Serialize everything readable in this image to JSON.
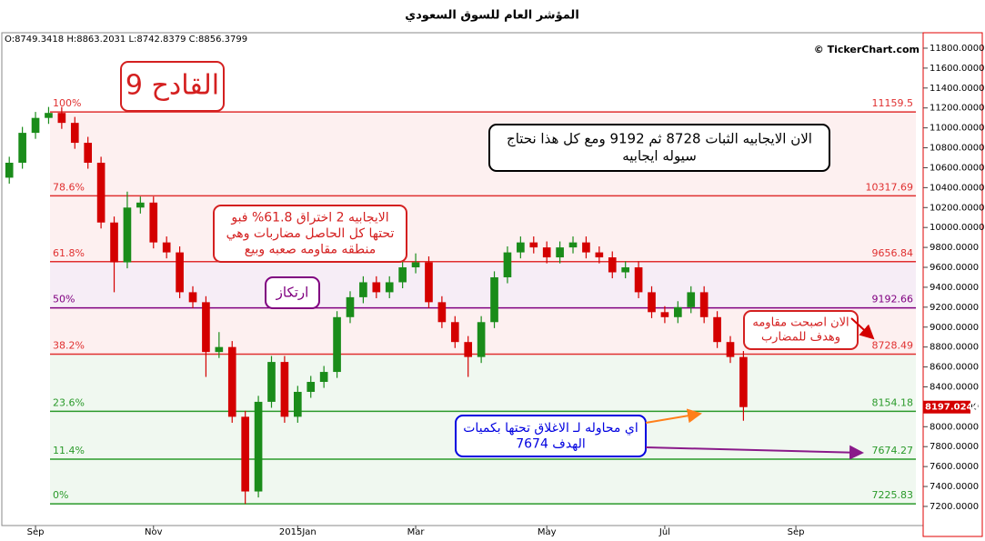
{
  "chart_data": {
    "type": "candlestick",
    "title": "المؤشر العام للسوق السعودي",
    "ohlc_header": "O:8749.3418  H:8863.2031  L:8742.8379  C:8856.3799",
    "watermark": "© TickerChart.com",
    "categories": [
      null,
      null,
      "Sep",
      null,
      null,
      null,
      null,
      null,
      null,
      null,
      null,
      "Nov",
      null,
      null,
      null,
      null,
      null,
      null,
      null,
      null,
      null,
      null,
      "2015Jan",
      null,
      null,
      null,
      null,
      null,
      null,
      null,
      null,
      "Mar",
      null,
      null,
      null,
      null,
      null,
      null,
      null,
      null,
      null,
      "May",
      null,
      null,
      null,
      null,
      null,
      null,
      null,
      null,
      "Jul",
      null,
      null,
      null,
      null,
      null,
      null,
      null,
      null,
      null,
      "Sep",
      null,
      null,
      null,
      null,
      null,
      null,
      null,
      null,
      null
    ],
    "open": [
      10500,
      10650,
      10950,
      11100,
      11150,
      11050,
      10850,
      10650,
      10050,
      9650,
      10200,
      10250,
      9850,
      9750,
      9350,
      9250,
      8750,
      8800,
      8100,
      7350,
      8250,
      8650,
      8100,
      8350,
      8450,
      8550,
      9100,
      9300,
      9450,
      9350,
      9450,
      9600,
      9650,
      9250,
      9050,
      8850,
      8700,
      9050,
      9500,
      9750,
      9850,
      9800,
      9700,
      9800,
      9850,
      9750,
      9700,
      9550,
      9600,
      9350,
      9150,
      9100,
      9200,
      9350,
      9100,
      8850,
      8700,
      null,
      null,
      null,
      null,
      null,
      null,
      null,
      null,
      null,
      null,
      null,
      null,
      null
    ],
    "high": [
      10710,
      11010,
      11160,
      11210,
      11210,
      11110,
      10910,
      10710,
      10110,
      10360,
      10310,
      10310,
      9910,
      9810,
      9410,
      9310,
      8950,
      8860,
      8160,
      8310,
      8710,
      8710,
      8410,
      8510,
      8610,
      9160,
      9360,
      9510,
      9510,
      9510,
      9660,
      9740,
      9710,
      9310,
      9110,
      8910,
      9110,
      9560,
      9810,
      9910,
      9910,
      9860,
      9860,
      9910,
      9910,
      9810,
      9760,
      9660,
      9660,
      9410,
      9210,
      9260,
      9410,
      9410,
      9160,
      8910,
      8760,
      null,
      null,
      null,
      null,
      null,
      null,
      null,
      null,
      null,
      null,
      null,
      null,
      null
    ],
    "low": [
      10440,
      10590,
      10890,
      11040,
      10990,
      10790,
      10590,
      9990,
      9350,
      9590,
      10140,
      9790,
      9690,
      9290,
      9190,
      8500,
      8690,
      8040,
      7225,
      7290,
      8190,
      8040,
      8040,
      8290,
      8390,
      8490,
      9040,
      9240,
      9290,
      9290,
      9390,
      9540,
      9190,
      8990,
      8790,
      8500,
      8640,
      8990,
      9440,
      9690,
      9740,
      9640,
      9640,
      9740,
      9690,
      9640,
      9490,
      9490,
      9290,
      9090,
      9040,
      9040,
      9140,
      9040,
      8790,
      8640,
      8060,
      null,
      null,
      null,
      null,
      null,
      null,
      null,
      null,
      null,
      null,
      null,
      null,
      null
    ],
    "close": [
      10650,
      10950,
      11100,
      11150,
      11050,
      10850,
      10650,
      10050,
      9650,
      10200,
      10250,
      9850,
      9750,
      9350,
      9250,
      8750,
      8800,
      8100,
      7350,
      8250,
      8650,
      8100,
      8350,
      8450,
      8550,
      9100,
      9300,
      9450,
      9350,
      9450,
      9600,
      9650,
      9250,
      9050,
      8850,
      8700,
      9050,
      9500,
      9750,
      9850,
      9800,
      9700,
      9800,
      9850,
      9750,
      9700,
      9550,
      9600,
      9350,
      9150,
      9100,
      9200,
      9350,
      9100,
      8850,
      8700,
      8197.0244,
      null,
      null,
      null,
      null,
      null,
      null,
      null,
      null,
      null,
      null,
      null,
      null,
      null
    ],
    "up_color": "#1a8c1a",
    "down_color": "#d40000",
    "last_price": {
      "value": 8197.0244,
      "label": "8197.0244"
    },
    "ylim": [
      7008,
      11955
    ],
    "yticks": [
      {
        "value": 7200,
        "label": "7200.0000"
      },
      {
        "value": 7400,
        "label": "7400.0000"
      },
      {
        "value": 7600,
        "label": "7600.0000"
      },
      {
        "value": 7800,
        "label": "7800.0000"
      },
      {
        "value": 8000,
        "label": "8000.0000"
      },
      {
        "value": 8200,
        "label": "8200.0000"
      },
      {
        "value": 8400,
        "label": "8400.0000"
      },
      {
        "value": 8600,
        "label": "8600.0000"
      },
      {
        "value": 8800,
        "label": "8800.0000"
      },
      {
        "value": 9000,
        "label": "9000.0000"
      },
      {
        "value": 9200,
        "label": "9200.0000"
      },
      {
        "value": 9400,
        "label": "9400.0000"
      },
      {
        "value": 9600,
        "label": "9600.0000"
      },
      {
        "value": 9800,
        "label": "9800.0000"
      },
      {
        "value": 10000,
        "label": "10000.0000"
      },
      {
        "value": 10200,
        "label": "10200.0000"
      },
      {
        "value": 10400,
        "label": "10400.0000"
      },
      {
        "value": 10600,
        "label": "10600.0000"
      },
      {
        "value": 10800,
        "label": "10800.0000"
      },
      {
        "value": 11000,
        "label": "11000.0000"
      },
      {
        "value": 11200,
        "label": "11200.0000"
      },
      {
        "value": 11400,
        "label": "11400.0000"
      },
      {
        "value": 11600,
        "label": "11600.0000"
      },
      {
        "value": 11800,
        "label": "11800.0000"
      }
    ],
    "fibonacci": [
      {
        "level": "100%",
        "value": 11159.5,
        "color": "#e03030"
      },
      {
        "level": "78.6%",
        "value": 10317.69,
        "color": "#e03030"
      },
      {
        "level": "61.8%",
        "value": 9656.84,
        "color": "#e03030"
      },
      {
        "level": "50%",
        "value": 9192.66,
        "color": "#800080"
      },
      {
        "level": "38.2%",
        "value": 8728.49,
        "color": "#e03030"
      },
      {
        "level": "23.6%",
        "value": 8154.18,
        "color": "#2a9a2a"
      },
      {
        "level": "11.4%",
        "value": 7674.27,
        "color": "#2a9a2a"
      },
      {
        "level": "0%",
        "value": 7225.83,
        "color": "#2a9a2a"
      }
    ],
    "annotations": [
      {
        "lines": [
          "القادح 9"
        ],
        "color": "#d42020"
      },
      {
        "lines": [
          "الان الايجابيه الثبات 8728 ثم 9192 ومع كل هذا نحتاج",
          "سيوله ايجابيه"
        ],
        "color": "#000000"
      },
      {
        "lines": [
          "الايجابيه 2 اختراق 61.8% فبو",
          "تحتها كل الحاصل مضاربات وهي",
          "منطقه مقاومه صعبه وبيع"
        ],
        "color": "#d42020"
      },
      {
        "lines": [
          "ارتكاز"
        ],
        "color": "#800080"
      },
      {
        "lines": [
          "الان اصبحت مقاومه",
          "وهدف للمضارب"
        ],
        "color": "#d42020"
      },
      {
        "lines": [
          "اي محاوله لـ الاغلاق تحتها بكميات",
          "الهدف 7674"
        ],
        "color": "#0000e0"
      }
    ]
  }
}
